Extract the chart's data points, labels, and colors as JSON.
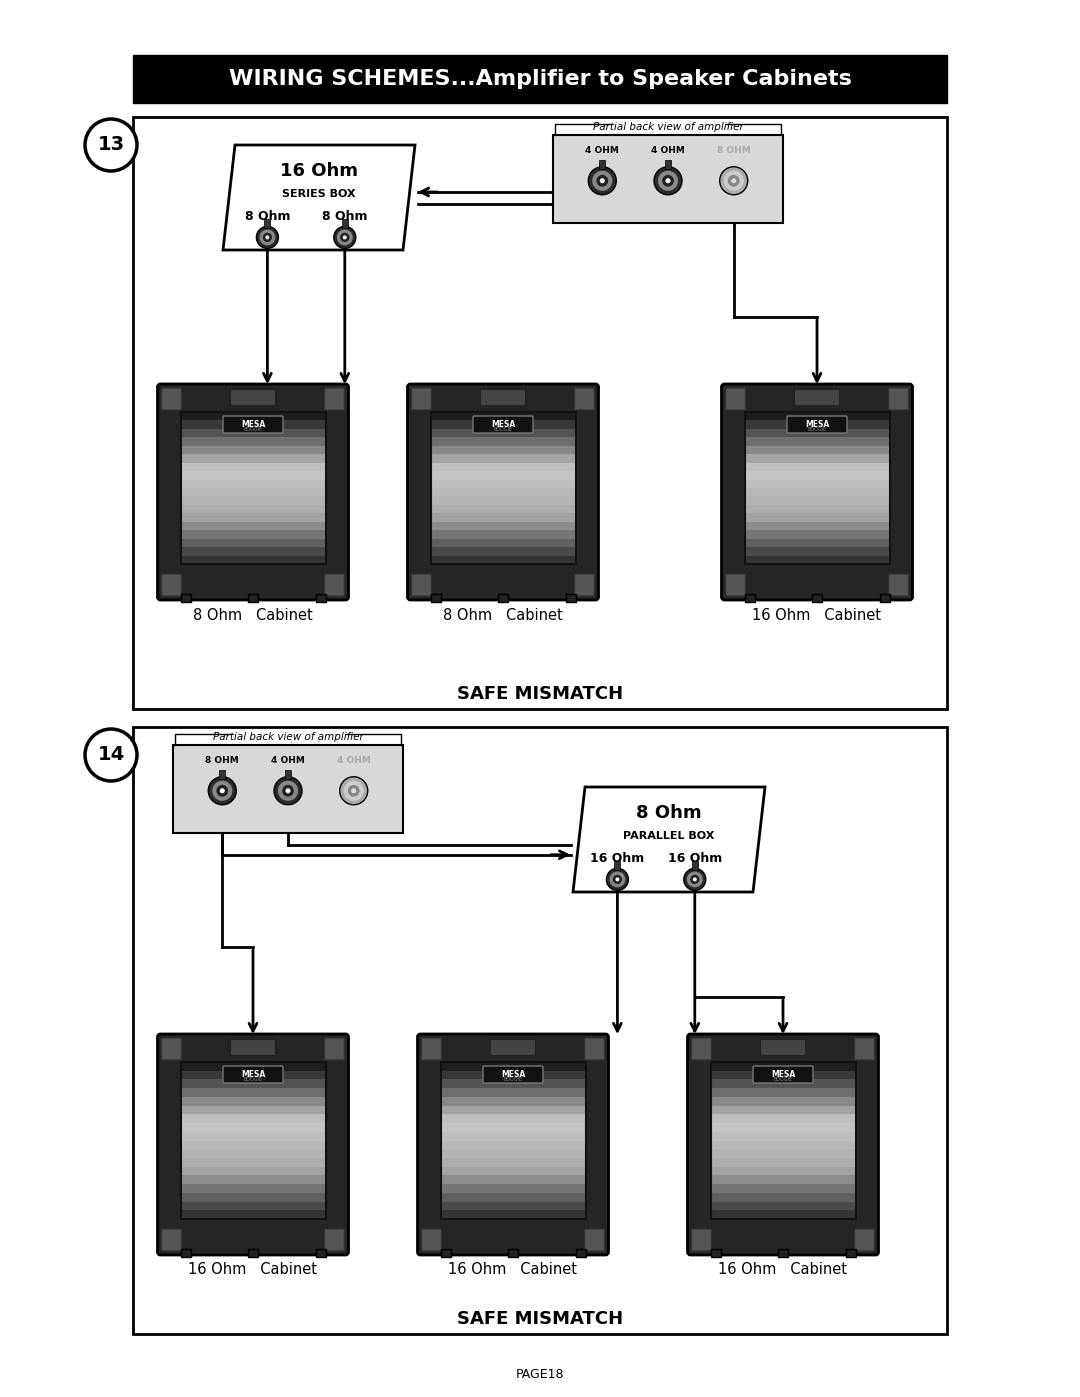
{
  "title": "WIRING SCHEMES...Amplifier to Speaker Cabinets",
  "page_label": "PAGE18",
  "diagram13": {
    "number": "13",
    "box_label": "16 Ohm",
    "box_sublabel": "SERIES BOX",
    "box_out1": "8 Ohm",
    "box_out2": "8 Ohm",
    "amp_label": "Partial back view of amplifier",
    "amp_jacks": [
      "4 OHM",
      "4 OHM",
      "8 OHM"
    ],
    "amp_active": [
      true,
      true,
      false
    ],
    "cab_labels": [
      "8 Ohm   Cabinet",
      "8 Ohm   Cabinet",
      "16 Ohm   Cabinet"
    ],
    "safe_mismatch": "SAFE MISMATCH"
  },
  "diagram14": {
    "number": "14",
    "box_label": "8 Ohm",
    "box_sublabel": "PARALLEL BOX",
    "box_out1": "16 Ohm",
    "box_out2": "16 Ohm",
    "amp_label": "Partial back view of amplifier",
    "amp_jacks": [
      "8 OHM",
      "4 OHM",
      "4 OHM"
    ],
    "amp_active": [
      true,
      true,
      false
    ],
    "cab_labels": [
      "16 Ohm   Cabinet",
      "16 Ohm   Cabinet",
      "16 Ohm   Cabinet"
    ],
    "safe_mismatch": "SAFE MISMATCH"
  }
}
